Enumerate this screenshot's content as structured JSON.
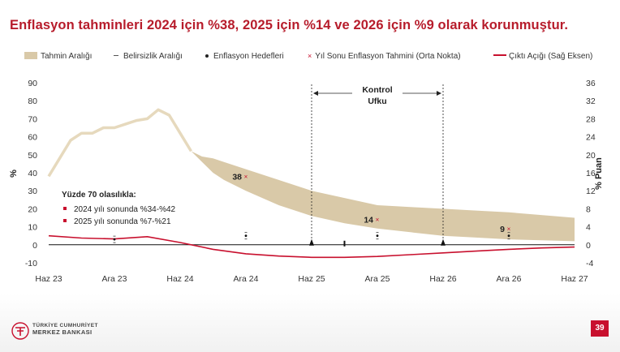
{
  "title": "Enflasyon tahminleri 2024 için %38, 2025 için %14 ve 2026 için %9 olarak korunmuştur.",
  "legend": {
    "range": "Tahmin Aralığı",
    "uncertainty": "Belirsizlik Aralığı",
    "targets": "Enflasyon Hedefleri",
    "midpoint": "Yıl Sonu Enflasyon Tahmini (Orta Nokta)",
    "output_gap": "Çıktı Açığı (Sağ Eksen)"
  },
  "colors": {
    "title": "#b71c2b",
    "band": "#d9c9a8",
    "output_gap": "#c8102e",
    "inflation_line": "#e6d9bd",
    "marker": "#c8102e",
    "badge": "#c8102e"
  },
  "chart_data": {
    "type": "area",
    "x_tick_labels": [
      "Haz 23",
      "Ara 23",
      "Haz 24",
      "Ara 24",
      "Haz 25",
      "Ara 25",
      "Haz 26",
      "Ara 26",
      "Haz 27"
    ],
    "y_left": {
      "label": "%",
      "ticks": [
        -10,
        0,
        10,
        20,
        30,
        40,
        50,
        60,
        70,
        80,
        90
      ],
      "lim": [
        -10,
        90
      ]
    },
    "y_right": {
      "label": "% Puan",
      "ticks": [
        -4,
        0,
        4,
        8,
        12,
        16,
        20,
        24,
        28,
        32,
        36
      ],
      "lim": [
        -4,
        36
      ]
    },
    "inflation_actual": {
      "x_months": [
        0,
        1,
        2,
        3,
        4,
        5,
        6,
        7,
        8,
        9,
        10,
        11,
        12,
        13
      ],
      "values": [
        38,
        48,
        58,
        62,
        62,
        65,
        65,
        67,
        69,
        70,
        75,
        72,
        62,
        52
      ]
    },
    "forecast_band": {
      "x_months": [
        13,
        14,
        15,
        16,
        18,
        21,
        24,
        27,
        30,
        33,
        36,
        39,
        42,
        48
      ],
      "upper": [
        52,
        49,
        48,
        46,
        42,
        36,
        30,
        26,
        22,
        21,
        20,
        19,
        18,
        15
      ],
      "lower": [
        52,
        46,
        40,
        36,
        30,
        22,
        16,
        12,
        9,
        7,
        5,
        4,
        3,
        2
      ]
    },
    "output_gap": {
      "x_months": [
        0,
        3,
        6,
        9,
        12,
        15,
        18,
        21,
        24,
        27,
        30,
        33,
        36,
        39,
        42,
        45,
        48
      ],
      "values": [
        2.0,
        1.5,
        1.3,
        1.8,
        0.5,
        -1.0,
        -2.0,
        -2.5,
        -2.8,
        -2.8,
        -2.6,
        -2.2,
        -1.8,
        -1.4,
        -1.0,
        -0.7,
        -0.5
      ]
    },
    "year_end_forecasts": [
      {
        "x_month": 18,
        "value": 38,
        "label": "38"
      },
      {
        "x_month": 30,
        "value": 14,
        "label": "14"
      },
      {
        "x_month": 42,
        "value": 9,
        "label": "9"
      }
    ],
    "inflation_targets": [
      {
        "x_month": 6,
        "value": 3
      },
      {
        "x_month": 18,
        "value": 5
      },
      {
        "x_month": 30,
        "value": 5
      },
      {
        "x_month": 42,
        "value": 5
      }
    ],
    "control_horizon": {
      "label_line1": "Kontrol",
      "label_line2": "Ufku",
      "start_month": 24,
      "end_month": 36
    },
    "annotation": {
      "header": "Yüzde 70 olasılıkla:",
      "lines": [
        "2024 yılı sonunda %34-%42",
        "2025 yılı sonunda %7-%21"
      ]
    }
  },
  "footer": {
    "logo_line1": "TÜRKİYE CUMHURİYET",
    "logo_line2": "MERKEZ BANKASI",
    "page_number": "39"
  }
}
